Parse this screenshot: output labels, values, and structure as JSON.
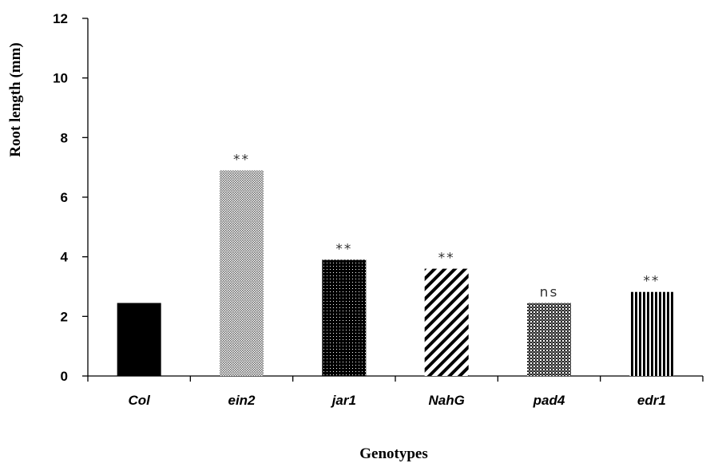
{
  "chart_data": {
    "type": "bar",
    "title": "",
    "xlabel": "Genotypes",
    "ylabel": "Root length (mm)",
    "ylim": [
      0,
      12
    ],
    "yticks": [
      0,
      2,
      4,
      6,
      8,
      10,
      12
    ],
    "grid": false,
    "legend": "none",
    "categories": [
      "Col",
      "ein2",
      "jar1",
      "NahG",
      "pad4",
      "edr1"
    ],
    "values": [
      2.45,
      6.9,
      3.9,
      3.6,
      2.45,
      2.82
    ],
    "annotations": [
      "",
      "**",
      "**",
      "**",
      "ns",
      "**"
    ],
    "fills": [
      {
        "pattern": "solid",
        "color": "#000000"
      },
      {
        "pattern": "fine-dots",
        "color": "#8a8a8a"
      },
      {
        "pattern": "dots-on-black",
        "color": "#000000"
      },
      {
        "pattern": "diagonal-stripes",
        "color": "#000000"
      },
      {
        "pattern": "checker",
        "color": "#3a3a3a"
      },
      {
        "pattern": "vertical-stripes",
        "color": "#000000"
      }
    ]
  }
}
